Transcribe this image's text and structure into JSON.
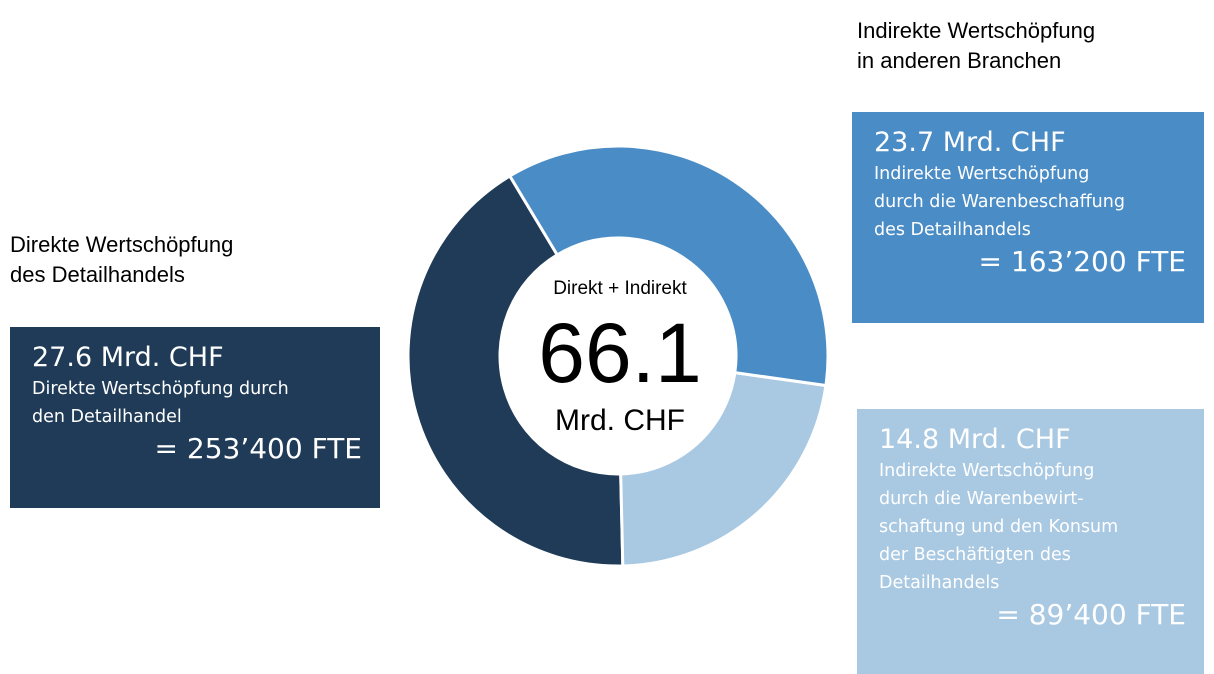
{
  "chart_data": {
    "type": "donut",
    "center_label": "Direkt + Indirekt",
    "total": 66.1,
    "total_unit": "Mrd. CHF",
    "values": [
      23.7,
      14.8,
      27.6
    ],
    "value_labels": [
      "23.7 Mrd. CHF",
      "14.8 Mrd. CHF",
      "27.6 Mrd. CHF"
    ],
    "colors": [
      "#4a8cc6",
      "#a9c8e2",
      "#1f3b57"
    ],
    "descriptions": [
      [
        "Indirekte Wertschöpfung",
        "durch die Warenbeschaffung",
        "des Detailhandels"
      ],
      [
        "Indirekte Wertschöpfung",
        "durch die Warenbewirt-",
        "schaftung und den Konsum",
        "der Beschäftigten des",
        "Detailhandels"
      ],
      [
        "Direkte Wertschöpfung durch",
        "den Detailhandel"
      ]
    ],
    "fte": [
      "= 163’200 FTE",
      "= 89’400 FTE",
      "= 253’400 FTE"
    ],
    "headings": [
      [
        "Indirekte Wertschöpfung",
        "in anderen Branchen"
      ],
      [
        "Direkte Wertschöpfung",
        "des Detailhandels"
      ]
    ]
  }
}
